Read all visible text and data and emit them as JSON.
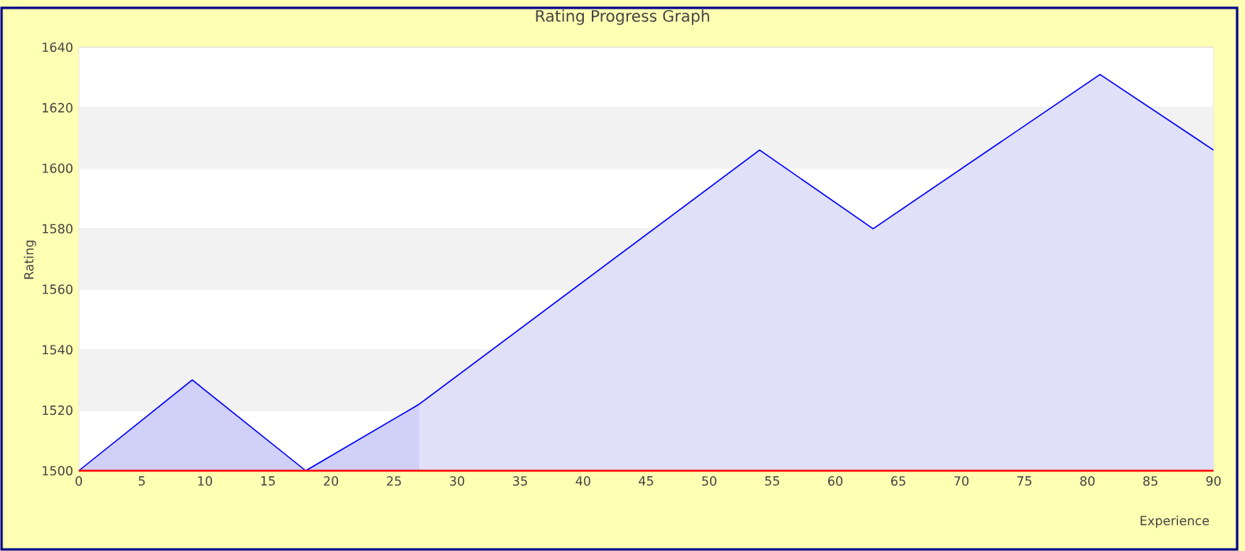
{
  "chart_data": {
    "type": "area",
    "title": "Rating Progress Graph",
    "xlabel": "Experience",
    "ylabel": "Rating",
    "series": [
      {
        "color": "#d0d0f8",
        "x": [
          0,
          9,
          18,
          27
        ],
        "values": [
          1500,
          1530,
          1500,
          1522
        ]
      },
      {
        "color": "#e0e0f8",
        "x": [
          27,
          54,
          63,
          81,
          90
        ],
        "values": [
          1522,
          1606,
          1580,
          1631,
          1606
        ]
      },
      {
        "type": "line",
        "color": "#0000ff",
        "x": [
          0,
          9,
          18,
          27,
          54,
          63,
          81,
          90
        ],
        "values": [
          1500,
          1530,
          1500,
          1522,
          1606,
          1580,
          1631,
          1606
        ]
      }
    ],
    "xlim": [
      0,
      90
    ],
    "ylim": [
      1500,
      1640
    ],
    "xticks": [
      0,
      5,
      10,
      15,
      20,
      25,
      30,
      35,
      40,
      45,
      50,
      55,
      60,
      65,
      70,
      75,
      80,
      85,
      90
    ],
    "yticks": [
      1500,
      1520,
      1540,
      1560,
      1580,
      1600,
      1620,
      1640
    ],
    "grid": "y",
    "marker": "none",
    "line_style": "solid",
    "bands": [
      {
        "axis": "y",
        "from": 1520,
        "to": 1540,
        "color": "#f2f2f2"
      },
      {
        "axis": "y",
        "from": 1560,
        "to": 1580,
        "color": "#f2f2f2"
      },
      {
        "axis": "y",
        "from": 1600,
        "to": 1620,
        "color": "#f2f2f2"
      }
    ]
  }
}
